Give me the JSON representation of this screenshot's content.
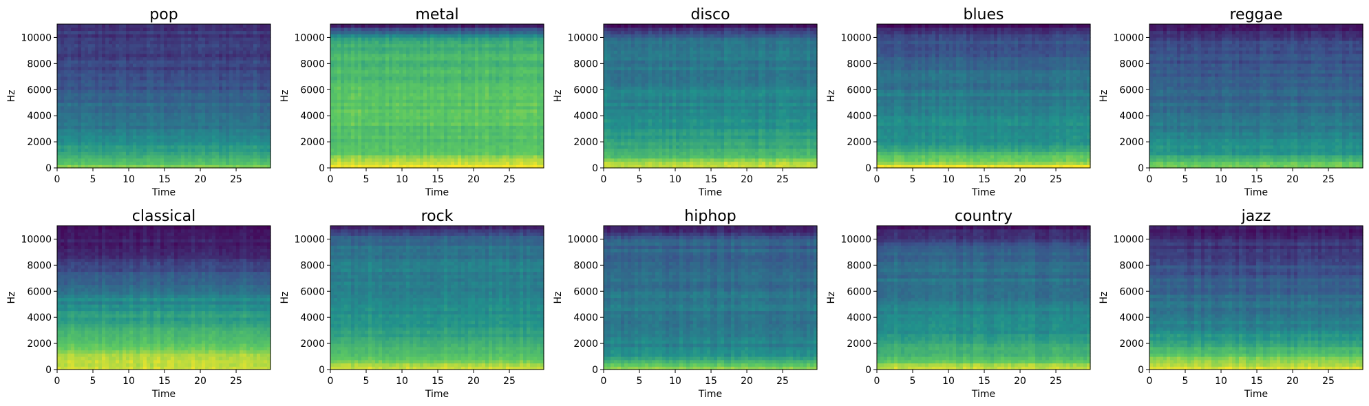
{
  "chart_data": {
    "type": "heatmap",
    "kind": "spectrogram",
    "colormap": "viridis",
    "colormap_stops": [
      "#440154",
      "#3b528b",
      "#21918c",
      "#5ec962",
      "#fde725"
    ],
    "grid": false,
    "layout": "2x5 grid",
    "xlabel": "Time",
    "ylabel": "Hz",
    "xlim": [
      0,
      29.8
    ],
    "ylim": [
      0,
      11025
    ],
    "xticks": [
      "0",
      "5",
      "10",
      "15",
      "20",
      "25"
    ],
    "yticks": [
      "0",
      "2000",
      "4000",
      "6000",
      "8000",
      "10000"
    ],
    "panels": [
      {
        "title": "pop",
        "profile": [
          0.82,
          0.6,
          0.45,
          0.4,
          0.35,
          0.3,
          0.25,
          0.2,
          0.18,
          0.17,
          0.16
        ]
      },
      {
        "title": "metal",
        "profile": [
          0.98,
          0.75,
          0.7,
          0.72,
          0.74,
          0.73,
          0.7,
          0.68,
          0.66,
          0.6,
          0.05
        ]
      },
      {
        "title": "disco",
        "profile": [
          0.95,
          0.65,
          0.55,
          0.5,
          0.46,
          0.44,
          0.42,
          0.4,
          0.38,
          0.36,
          0.05
        ]
      },
      {
        "title": "blues",
        "profile": [
          0.99,
          0.65,
          0.5,
          0.47,
          0.45,
          0.42,
          0.38,
          0.33,
          0.28,
          0.22,
          0.03
        ]
      },
      {
        "title": "reggae",
        "profile": [
          0.85,
          0.55,
          0.45,
          0.4,
          0.36,
          0.33,
          0.3,
          0.27,
          0.24,
          0.2,
          0.02
        ]
      },
      {
        "title": "classical",
        "profile": [
          0.98,
          0.85,
          0.7,
          0.6,
          0.52,
          0.45,
          0.35,
          0.25,
          0.15,
          0.08,
          0.02
        ]
      },
      {
        "title": "rock",
        "profile": [
          0.98,
          0.7,
          0.6,
          0.55,
          0.5,
          0.47,
          0.45,
          0.43,
          0.4,
          0.35,
          0.05
        ]
      },
      {
        "title": "hiphop",
        "profile": [
          0.85,
          0.5,
          0.44,
          0.42,
          0.4,
          0.38,
          0.37,
          0.35,
          0.33,
          0.3,
          0.05
        ]
      },
      {
        "title": "country",
        "profile": [
          0.95,
          0.65,
          0.55,
          0.5,
          0.45,
          0.41,
          0.38,
          0.35,
          0.3,
          0.2,
          0.05
        ]
      },
      {
        "title": "jazz",
        "profile": [
          0.95,
          0.75,
          0.55,
          0.45,
          0.4,
          0.35,
          0.3,
          0.25,
          0.2,
          0.15,
          0.05
        ]
      }
    ]
  }
}
